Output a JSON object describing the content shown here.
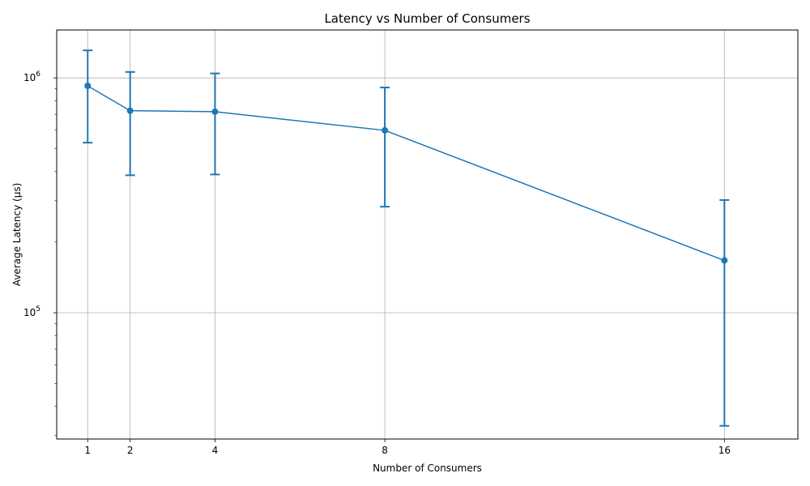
{
  "chart_data": {
    "type": "line",
    "title": "Latency vs Number of Consumers",
    "xlabel": "Number of Consumers",
    "ylabel": "Average Latency (μs)",
    "x_ticks": [
      "1",
      "2",
      "4",
      "8",
      "16"
    ],
    "y_ticks": [
      {
        "value": 100000,
        "base": "10",
        "exp": "5"
      },
      {
        "value": 1000000,
        "base": "10",
        "exp": "6"
      }
    ],
    "yscale": "log",
    "xlim": [
      0.27,
      17.73
    ],
    "ylim": [
      29000,
      1600000
    ],
    "grid": true,
    "series": [
      {
        "color": "#1f77b4",
        "x": [
          1,
          2,
          4,
          8,
          16
        ],
        "y": [
          925000,
          725000,
          718000,
          598000,
          167000
        ],
        "err_low": [
          530000,
          385000,
          388000,
          283000,
          33000
        ],
        "err_high": [
          1310000,
          1060000,
          1045000,
          910000,
          302000
        ]
      }
    ]
  }
}
